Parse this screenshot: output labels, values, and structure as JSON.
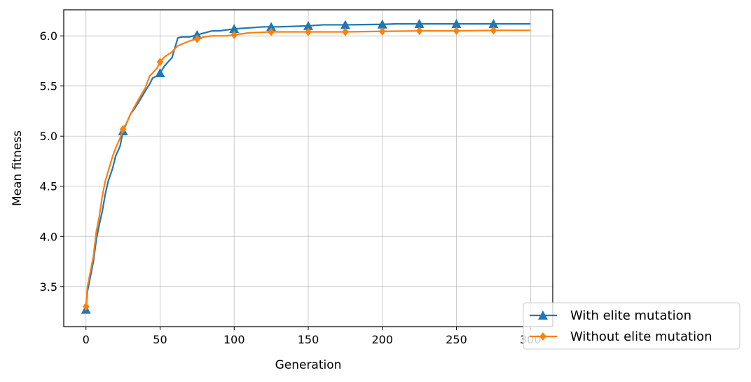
{
  "chart_data": {
    "type": "line",
    "title": "",
    "xlabel": "Generation",
    "ylabel": "Mean fitness",
    "xlim": [
      -15,
      315
    ],
    "ylim": [
      3.1,
      6.26
    ],
    "xticks": [
      0,
      50,
      100,
      150,
      200,
      250,
      300
    ],
    "yticks": [
      3.5,
      4.0,
      4.5,
      5.0,
      5.5,
      6.0
    ],
    "xtick_labels": [
      "0",
      "50",
      "100",
      "150",
      "200",
      "250",
      "300"
    ],
    "ytick_labels": [
      "3.5",
      "4.0",
      "4.5",
      "5.0",
      "5.5",
      "6.0"
    ],
    "grid": true,
    "legend_position": "lower-right-outside",
    "series": [
      {
        "name": "With elite mutation",
        "color": "#1f77b4",
        "marker": "triangle",
        "marker_every": 25,
        "x": [
          0,
          1,
          3,
          5,
          7,
          9,
          11,
          13,
          15,
          18,
          20,
          23,
          25,
          28,
          30,
          33,
          36,
          40,
          43,
          45,
          48,
          50,
          53,
          56,
          58,
          60,
          62,
          65,
          70,
          75,
          80,
          85,
          90,
          95,
          100,
          110,
          120,
          125,
          130,
          150,
          160,
          175,
          200,
          210,
          225,
          250,
          275,
          300
        ],
        "y": [
          3.27,
          3.45,
          3.6,
          3.75,
          3.97,
          4.12,
          4.25,
          4.42,
          4.55,
          4.68,
          4.8,
          4.9,
          5.05,
          5.15,
          5.22,
          5.28,
          5.35,
          5.45,
          5.52,
          5.58,
          5.6,
          5.63,
          5.7,
          5.75,
          5.78,
          5.88,
          5.98,
          5.99,
          5.99,
          6.01,
          6.03,
          6.05,
          6.05,
          6.06,
          6.07,
          6.08,
          6.09,
          6.09,
          6.09,
          6.1,
          6.11,
          6.11,
          6.115,
          6.12,
          6.12,
          6.12,
          6.12,
          6.12
        ]
      },
      {
        "name": "Without elite mutation",
        "color": "#ff7f0e",
        "marker": "diamond",
        "marker_every": 25,
        "x": [
          0,
          1,
          3,
          5,
          7,
          9,
          11,
          13,
          15,
          18,
          20,
          23,
          25,
          28,
          30,
          33,
          36,
          40,
          43,
          45,
          48,
          50,
          53,
          56,
          58,
          60,
          62,
          65,
          70,
          75,
          80,
          85,
          90,
          95,
          100,
          110,
          125,
          150,
          175,
          200,
          225,
          250,
          275,
          300
        ],
        "y": [
          3.3,
          3.5,
          3.65,
          3.8,
          4.05,
          4.2,
          4.4,
          4.55,
          4.65,
          4.8,
          4.88,
          4.98,
          5.07,
          5.15,
          5.22,
          5.3,
          5.38,
          5.48,
          5.6,
          5.63,
          5.68,
          5.74,
          5.79,
          5.82,
          5.84,
          5.87,
          5.9,
          5.92,
          5.95,
          5.97,
          5.99,
          6.0,
          6.0,
          6.0,
          6.01,
          6.03,
          6.04,
          6.04,
          6.04,
          6.045,
          6.05,
          6.05,
          6.055,
          6.055
        ]
      }
    ]
  }
}
